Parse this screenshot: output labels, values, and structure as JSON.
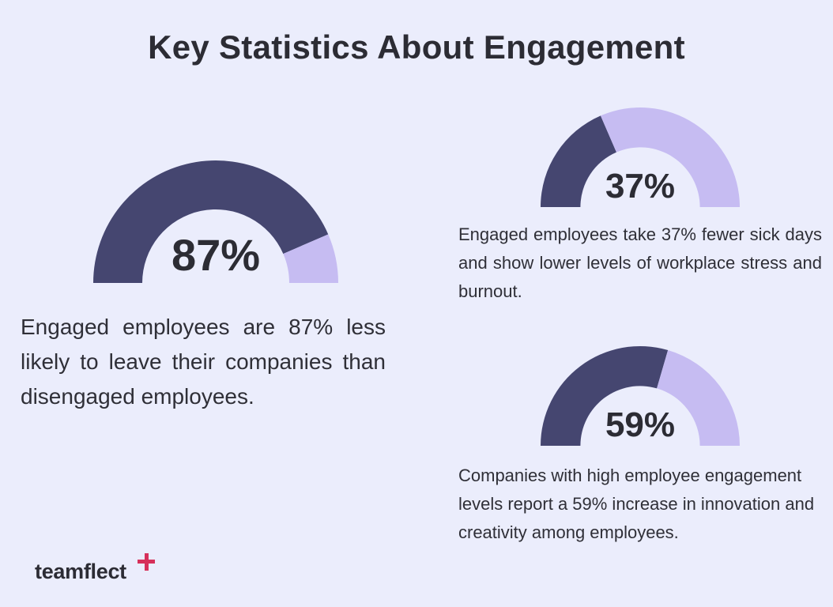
{
  "title": "Key Statistics About Engagement",
  "colors": {
    "background": "#ebedfc",
    "filled": "#454670",
    "remaining": "#c6bcf2",
    "text": "#2c2c34",
    "logo_accent": "#d6305a"
  },
  "chart_data": [
    {
      "type": "gauge",
      "value": 87,
      "max": 100,
      "label": "87%",
      "description": "Engaged employees are 87% less likely to leave their companies than disengaged employees."
    },
    {
      "type": "gauge",
      "value": 37,
      "max": 100,
      "label": "37%",
      "description": "Engaged employees take 37% fewer sick days and show lower levels of workplace stress and burnout."
    },
    {
      "type": "gauge",
      "value": 59,
      "max": 100,
      "label": "59%",
      "description": "Companies with high employee engagement levels report a 59% increase in innovation and creativity among employees."
    }
  ],
  "logo": {
    "text": "teamflect",
    "icon": "plus-icon"
  }
}
